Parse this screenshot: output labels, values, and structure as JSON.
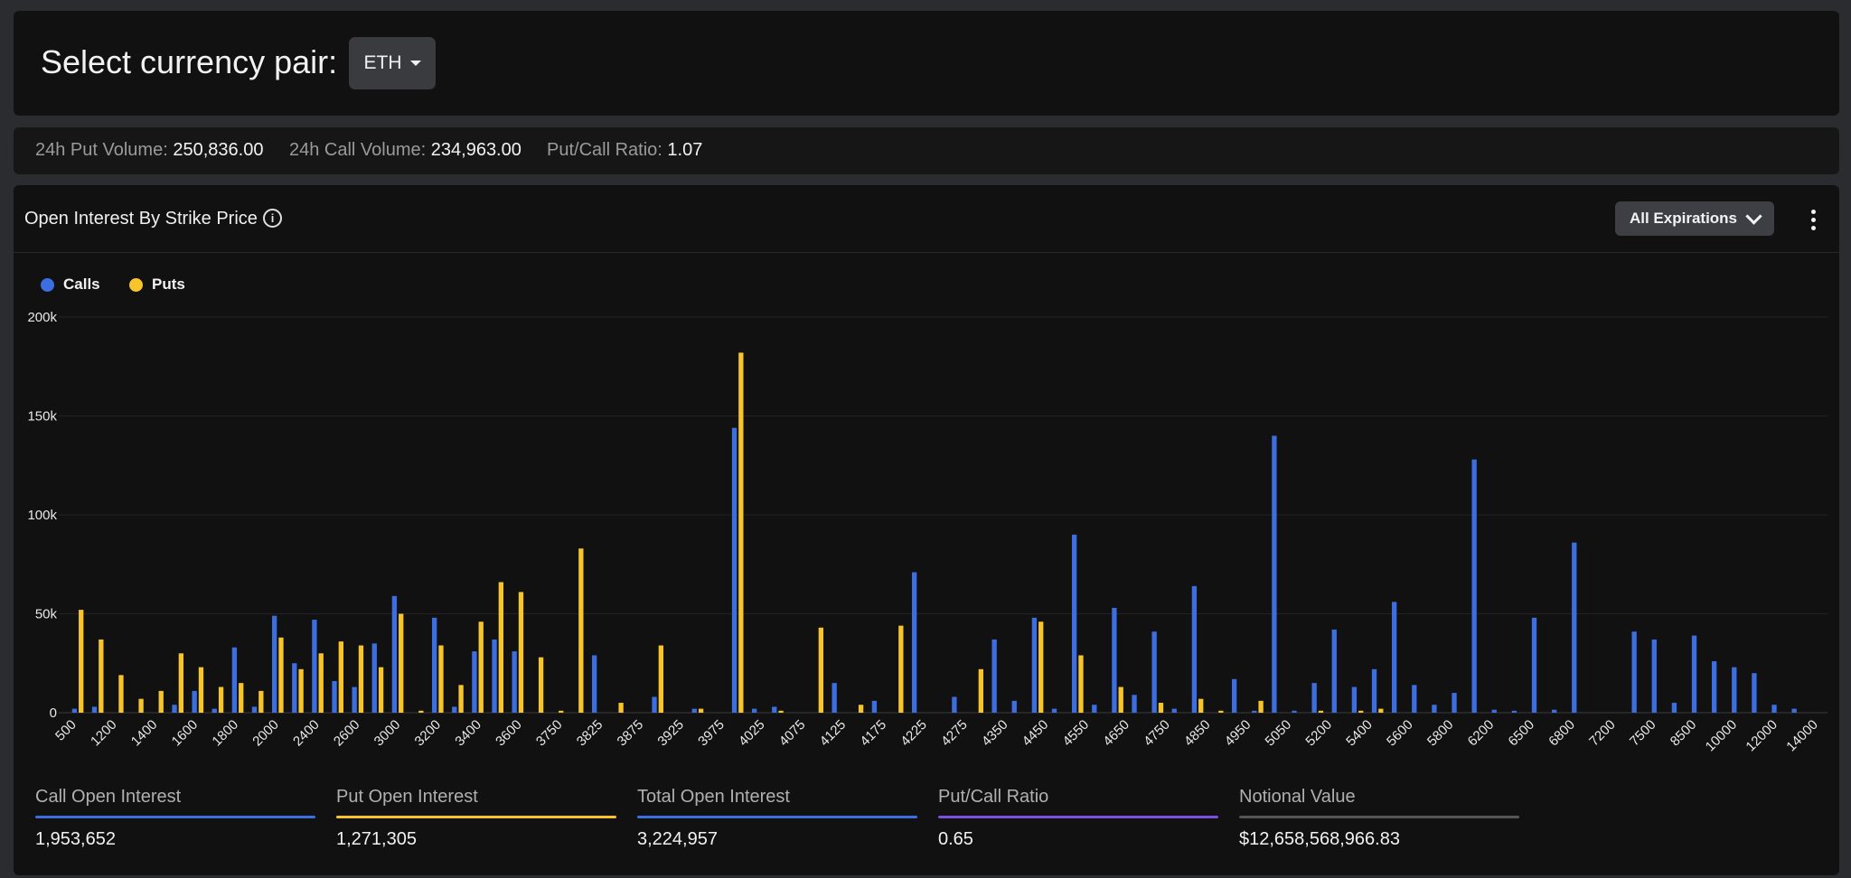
{
  "header": {
    "title": "Select currency pair:",
    "currency": "ETH"
  },
  "stats": {
    "put_volume_label": "24h Put Volume:",
    "put_volume": "250,836.00",
    "call_volume_label": "24h Call Volume:",
    "call_volume": "234,963.00",
    "ratio_label": "Put/Call Ratio:",
    "ratio": "1.07"
  },
  "chart_panel": {
    "title": "Open Interest By Strike Price",
    "info_icon": "info-icon",
    "expiration_label": "All Expirations",
    "menu_icon": "kebab-menu-icon"
  },
  "colors": {
    "calls": "#3d6ee0",
    "puts": "#f7c52b",
    "total": "#3d6ee0",
    "ratio": "#7b4fe0",
    "notional": "#555555"
  },
  "chart_data": {
    "type": "bar",
    "title": "",
    "xlabel": "",
    "ylabel": "",
    "ylim": [
      0,
      200000
    ],
    "y_ticks": [
      0,
      50000,
      100000,
      150000,
      200000
    ],
    "y_tick_labels": [
      "0",
      "50k",
      "100k",
      "150k",
      "200k"
    ],
    "grid": true,
    "legend_position": "top-left",
    "categories": [
      "500",
      "1000",
      "1200",
      "1300",
      "1400",
      "1500",
      "1600",
      "1700",
      "1800",
      "1900",
      "2000",
      "2200",
      "2400",
      "2500",
      "2600",
      "2800",
      "3000",
      "3100",
      "3200",
      "3300",
      "3400",
      "3500",
      "3600",
      "3700",
      "3750",
      "3800",
      "3825",
      "3850",
      "3875",
      "3900",
      "3925",
      "3950",
      "3975",
      "4000",
      "4025",
      "4050",
      "4075",
      "4100",
      "4125",
      "4150",
      "4175",
      "4200",
      "4225",
      "4250",
      "4275",
      "4300",
      "4350",
      "4400",
      "4450",
      "4500",
      "4550",
      "4600",
      "4650",
      "4700",
      "4750",
      "4800",
      "4850",
      "4900",
      "4950",
      "5000",
      "5050",
      "5100",
      "5200",
      "5300",
      "5400",
      "5500",
      "5600",
      "5700",
      "5800",
      "6000",
      "6200",
      "6400",
      "6500",
      "6600",
      "6800",
      "7000",
      "7200",
      "7400",
      "7500",
      "8000",
      "8500",
      "9000",
      "10000",
      "11000",
      "12000",
      "13000",
      "14000",
      "15000"
    ],
    "x_tick_labels": [
      "500",
      "1200",
      "1400",
      "1600",
      "1800",
      "2000",
      "2400",
      "2600",
      "3000",
      "3200",
      "3400",
      "3600",
      "3750",
      "3825",
      "3875",
      "3925",
      "3975",
      "4025",
      "4075",
      "4125",
      "4175",
      "4225",
      "4275",
      "4350",
      "4450",
      "4550",
      "4650",
      "4750",
      "4850",
      "4950",
      "5050",
      "5200",
      "5400",
      "5600",
      "5800",
      "6200",
      "6500",
      "6800",
      "7200",
      "7500",
      "8500",
      "10000",
      "12000",
      "14000"
    ],
    "series": [
      {
        "name": "Calls",
        "values": [
          2000,
          3000,
          0,
          0,
          0,
          4000,
          11000,
          2000,
          33000,
          3000,
          49000,
          25000,
          47000,
          16000,
          13000,
          35000,
          59000,
          0,
          48000,
          3000,
          31000,
          37000,
          31000,
          0,
          0,
          0,
          29000,
          0,
          0,
          8000,
          0,
          2000,
          0,
          144000,
          2000,
          3000,
          0,
          0,
          15000,
          0,
          6000,
          0,
          71000,
          0,
          8000,
          0,
          37000,
          6000,
          48000,
          2000,
          90000,
          4000,
          53000,
          9000,
          41000,
          2000,
          64000,
          0,
          17000,
          1000,
          140000,
          1000,
          15000,
          42000,
          13000,
          22000,
          56000,
          14000,
          4000,
          10000,
          128000,
          1500,
          1000,
          48000,
          1500,
          86000,
          0,
          0,
          41000,
          37000,
          5000,
          39000,
          26000,
          23000,
          20000,
          4000,
          2000,
          0
        ]
      },
      {
        "name": "Puts",
        "values": [
          52000,
          37000,
          19000,
          7000,
          11000,
          30000,
          23000,
          13000,
          15000,
          11000,
          38000,
          22000,
          30000,
          36000,
          34000,
          23000,
          50000,
          1000,
          34000,
          14000,
          46000,
          66000,
          61000,
          28000,
          1000,
          83000,
          0,
          5000,
          0,
          34000,
          0,
          2000,
          0,
          182000,
          0,
          1000,
          0,
          43000,
          0,
          4000,
          0,
          44000,
          0,
          0,
          0,
          22000,
          0,
          0,
          46000,
          0,
          29000,
          0,
          13000,
          0,
          5000,
          0,
          7000,
          1000,
          0,
          6000,
          0,
          0,
          1000,
          0,
          1000,
          2000,
          0,
          0,
          0,
          0,
          0,
          0,
          0,
          0,
          0,
          0,
          0,
          0,
          0,
          0,
          0,
          0,
          0,
          0,
          0,
          0,
          0,
          0
        ]
      }
    ]
  },
  "metrics": [
    {
      "label": "Call Open Interest",
      "value": "1,953,652",
      "color": "#3d6ee0"
    },
    {
      "label": "Put Open Interest",
      "value": "1,271,305",
      "color": "#f7c52b"
    },
    {
      "label": "Total Open Interest",
      "value": "3,224,957",
      "color": "#3d6ee0"
    },
    {
      "label": "Put/Call Ratio",
      "value": "0.65",
      "color": "#7b4fe0"
    },
    {
      "label": "Notional Value",
      "value": "$12,658,568,966.83",
      "color": "#555555"
    }
  ]
}
